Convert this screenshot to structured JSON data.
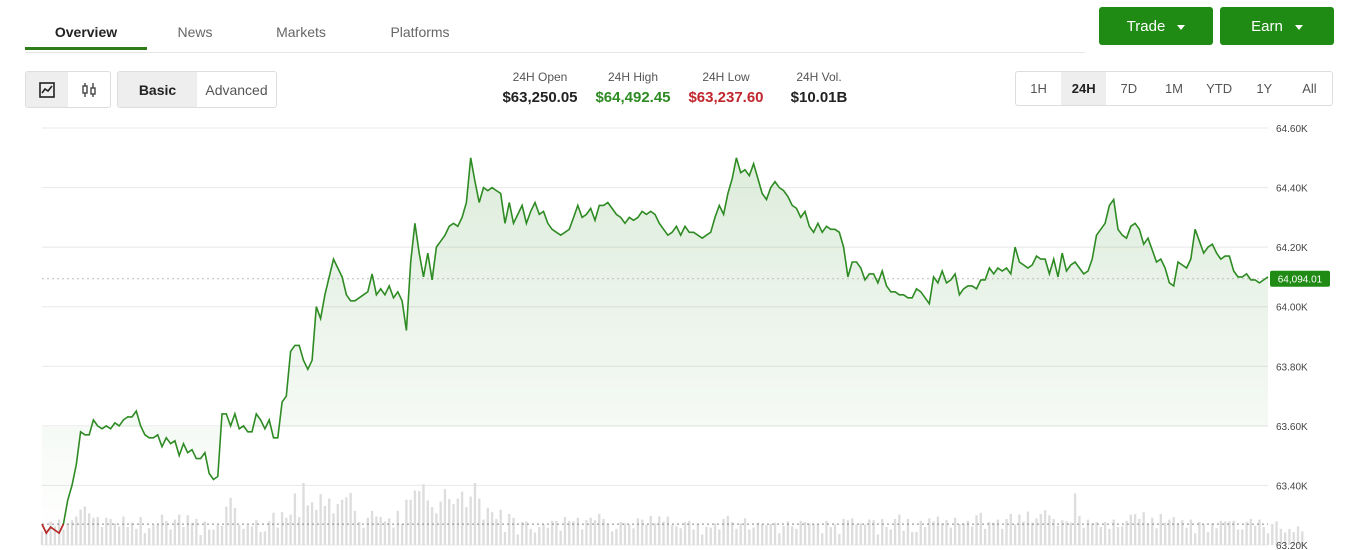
{
  "tabs": [
    {
      "label": "Overview",
      "active": true
    },
    {
      "label": "News",
      "active": false
    },
    {
      "label": "Markets",
      "active": false
    },
    {
      "label": "Platforms",
      "active": false
    }
  ],
  "buttons": {
    "trade": "Trade",
    "earn": "Earn"
  },
  "view_toggle": {
    "basic": "Basic",
    "advanced": "Advanced",
    "active": "Basic"
  },
  "chart_type_icons": [
    "line-chart-icon",
    "candlestick-icon"
  ],
  "stats": {
    "open": {
      "label": "24H Open",
      "value": "$63,250.05"
    },
    "high": {
      "label": "24H High",
      "value": "$64,492.45"
    },
    "low": {
      "label": "24H Low",
      "value": "$63,237.60"
    },
    "vol": {
      "label": "24H Vol.",
      "value": "$10.01B"
    }
  },
  "ranges": [
    "1H",
    "24H",
    "7D",
    "1M",
    "YTD",
    "1Y",
    "All"
  ],
  "active_range": "24H",
  "colors": {
    "accent": "#1f8b14",
    "line": "#2e8b23",
    "high": "#2e8b23",
    "low": "#c0262d",
    "volume": "#dddddd"
  },
  "chart_data": {
    "type": "line",
    "title": "",
    "xlabel": "",
    "ylabel": "",
    "ylim": [
      63200,
      64600
    ],
    "yticks": [
      "64.60K",
      "64.40K",
      "64.20K",
      "64.00K",
      "63.80K",
      "63.60K",
      "63.40K",
      "63.20K"
    ],
    "current_price": "64,094.01",
    "current_value": 64094.01,
    "volume_reference": 63270,
    "price": [
      63270,
      63240,
      63260,
      63250,
      63240,
      63270,
      63350,
      63400,
      63470,
      63580,
      63570,
      63570,
      63620,
      63600,
      63590,
      63600,
      63590,
      63610,
      63600,
      63620,
      63630,
      63630,
      63650,
      63600,
      63570,
      63560,
      63560,
      63570,
      63530,
      63560,
      63540,
      63550,
      63500,
      63540,
      63510,
      63520,
      63490,
      63490,
      63510,
      63440,
      63420,
      63430,
      63640,
      63640,
      63600,
      63640,
      63590,
      63600,
      63580,
      63580,
      63640,
      63620,
      63590,
      63620,
      63560,
      63560,
      63680,
      63700,
      63850,
      63870,
      63870,
      63820,
      63790,
      63820,
      64000,
      63960,
      64040,
      64100,
      64160,
      64130,
      64100,
      64040,
      64020,
      64020,
      64030,
      64040,
      64050,
      64110,
      64040,
      64060,
      64040,
      64070,
      64030,
      64050,
      64020,
      63920,
      64150,
      64280,
      64180,
      64100,
      64180,
      64090,
      64200,
      64220,
      64240,
      64270,
      64280,
      64270,
      64300,
      64350,
      64500,
      64420,
      64350,
      64400,
      64390,
      64400,
      64390,
      64380,
      64280,
      64350,
      64280,
      64310,
      64340,
      64280,
      64320,
      64350,
      64310,
      64320,
      64280,
      64260,
      64250,
      64240,
      64250,
      64260,
      64300,
      64340,
      64300,
      64310,
      64330,
      64290,
      64340,
      64340,
      64350,
      64330,
      64310,
      64300,
      64280,
      64300,
      64290,
      64300,
      64320,
      64310,
      64320,
      64310,
      64280,
      64260,
      64240,
      64250,
      64270,
      64240,
      64270,
      64250,
      64250,
      64240,
      64230,
      64240,
      64250,
      64300,
      64340,
      64310,
      64380,
      64430,
      64500,
      64450,
      64460,
      64440,
      64480,
      64430,
      64380,
      64360,
      64400,
      64420,
      64400,
      64390,
      64370,
      64340,
      64330,
      64300,
      64320,
      64270,
      64250,
      64280,
      64250,
      64270,
      64260,
      64260,
      64250,
      64200,
      64100,
      64150,
      64150,
      64130,
      64090,
      64110,
      64110,
      64080,
      64120,
      64070,
      64050,
      64050,
      64040,
      64040,
      64030,
      64030,
      64060,
      64050,
      64030,
      64010,
      64100,
      64080,
      64120,
      64080,
      64090,
      64110,
      64040,
      64060,
      64070,
      64070,
      64060,
      64090,
      64090,
      64130,
      64110,
      64130,
      64120,
      64130,
      64110,
      64200,
      64150,
      64140,
      64130,
      64140,
      64170,
      64160,
      64160,
      64110,
      64160,
      64100,
      64180,
      64120,
      64140,
      64150,
      64130,
      64110,
      64120,
      64160,
      64240,
      64260,
      64280,
      64340,
      64360,
      64260,
      64240,
      64230,
      64270,
      64280,
      64260,
      64210,
      64230,
      64190,
      64150,
      64160,
      64130,
      64080,
      64070,
      64150,
      64140,
      64130,
      64160,
      64260,
      64220,
      64180,
      64200,
      64210,
      64180,
      64160,
      64170,
      64170,
      64120,
      64100,
      64100,
      64110,
      64090,
      64090,
      64080,
      64090,
      64100
    ],
    "volume": [
      0.22,
      0.25,
      0.38,
      0.3,
      0.41,
      0.25,
      0.34,
      0.4,
      0.46,
      0.57,
      0.62,
      0.51,
      0.44,
      0.45,
      0.29,
      0.44,
      0.42,
      0.35,
      0.3,
      0.46,
      0.29,
      0.36,
      0.26,
      0.45,
      0.19,
      0.27,
      0.32,
      0.33,
      0.49,
      0.39,
      0.25,
      0.41,
      0.49,
      0.29,
      0.48,
      0.36,
      0.42,
      0.16,
      0.38,
      0.25,
      0.25,
      0.32,
      0.31,
      0.62,
      0.76,
      0.6,
      0.32,
      0.26,
      0.32,
      0.3,
      0.4,
      0.21,
      0.22,
      0.38,
      0.52,
      0.28,
      0.53,
      0.44,
      0.49,
      0.83,
      0.45,
      1.0,
      0.64,
      0.69,
      0.57,
      0.82,
      0.63,
      0.75,
      0.51,
      0.66,
      0.73,
      0.77,
      0.84,
      0.55,
      0.37,
      0.28,
      0.44,
      0.55,
      0.46,
      0.45,
      0.38,
      0.43,
      0.28,
      0.55,
      0.34,
      0.73,
      0.73,
      0.88,
      0.87,
      0.98,
      0.72,
      0.61,
      0.51,
      0.7,
      0.9,
      0.74,
      0.66,
      0.75,
      0.86,
      0.61,
      0.78,
      1.0,
      0.75,
      0.41,
      0.6,
      0.53,
      0.42,
      0.57,
      0.21,
      0.5,
      0.44,
      0.17,
      0.37,
      0.38,
      0.26,
      0.2,
      0.29,
      0.33,
      0.28,
      0.39,
      0.39,
      0.23,
      0.45,
      0.39,
      0.38,
      0.44,
      0.25,
      0.4,
      0.44,
      0.4,
      0.5,
      0.42,
      0.34,
      0.22,
      0.26,
      0.37,
      0.35,
      0.33,
      0.27,
      0.43,
      0.41,
      0.33,
      0.47,
      0.35,
      0.46,
      0.38,
      0.46,
      0.32,
      0.3,
      0.27,
      0.37,
      0.39,
      0.25,
      0.34,
      0.17,
      0.29,
      0.28,
      0.35,
      0.25,
      0.42,
      0.47,
      0.37,
      0.26,
      0.35,
      0.43,
      0.25,
      0.28,
      0.36,
      0.34,
      0.32,
      0.34,
      0.36,
      0.19,
      0.31,
      0.38,
      0.3,
      0.26,
      0.39,
      0.37,
      0.35,
      0.34,
      0.34,
      0.19,
      0.39,
      0.29,
      0.33,
      0.18,
      0.42,
      0.4,
      0.43,
      0.33,
      0.35,
      0.33,
      0.41,
      0.4,
      0.17,
      0.42,
      0.29,
      0.25,
      0.42,
      0.49,
      0.23,
      0.42,
      0.21,
      0.21,
      0.39,
      0.29,
      0.43,
      0.38,
      0.46,
      0.35,
      0.4,
      0.28,
      0.44,
      0.34,
      0.35,
      0.39,
      0.3,
      0.48,
      0.52,
      0.26,
      0.37,
      0.36,
      0.41,
      0.26,
      0.42,
      0.5,
      0.33,
      0.49,
      0.38,
      0.54,
      0.36,
      0.43,
      0.5,
      0.56,
      0.48,
      0.42,
      0.31,
      0.4,
      0.38,
      0.36,
      0.83,
      0.47,
      0.28,
      0.41,
      0.35,
      0.37,
      0.29,
      0.37,
      0.26,
      0.41,
      0.29,
      0.3,
      0.39,
      0.49,
      0.5,
      0.42,
      0.53,
      0.35,
      0.44,
      0.27,
      0.5,
      0.36,
      0.41,
      0.45,
      0.35,
      0.4,
      0.28,
      0.41,
      0.19,
      0.37,
      0.33,
      0.21,
      0.35,
      0.27,
      0.39,
      0.38,
      0.38,
      0.39,
      0.25,
      0.25,
      0.37,
      0.42,
      0.31,
      0.41,
      0.29,
      0.19,
      0.34,
      0.38,
      0.26,
      0.2,
      0.26,
      0.21,
      0.3,
      0.22
    ]
  }
}
